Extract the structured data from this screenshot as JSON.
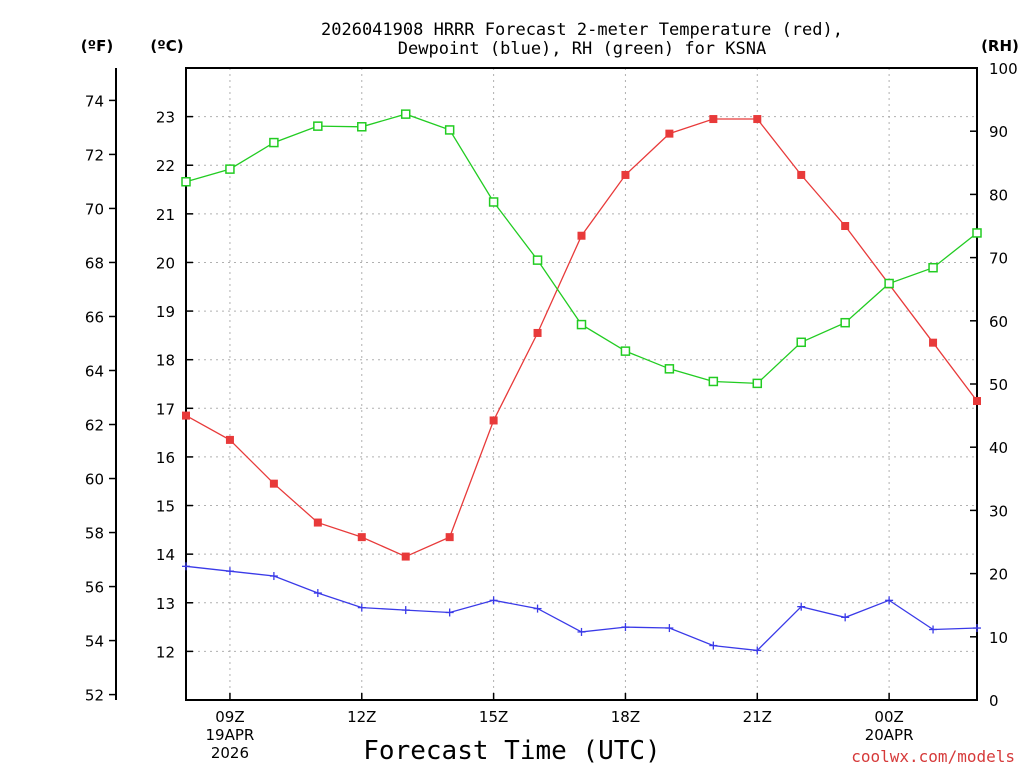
{
  "chart_data": {
    "type": "line",
    "title_line1": "2026041908 HRRR Forecast 2-meter Temperature (red),",
    "title_line2": "Dewpoint (blue), RH (green) for KSNA",
    "xlabel": "Forecast Time (UTC)",
    "credit": "coolwx.com/models",
    "left_outer_unit": "(ºF)",
    "left_inner_unit": "(ºC)",
    "right_unit": "(RH)",
    "x_hours": [
      8,
      9,
      10,
      11,
      12,
      13,
      14,
      15,
      16,
      17,
      18,
      19,
      20,
      21,
      22,
      23,
      24,
      25,
      26
    ],
    "xlim": [
      8,
      26
    ],
    "x_ticks": [
      {
        "hour": 9,
        "label": "09Z",
        "sub1": "19APR",
        "sub2": "2026"
      },
      {
        "hour": 12,
        "label": "12Z",
        "sub1": "",
        "sub2": ""
      },
      {
        "hour": 15,
        "label": "15Z",
        "sub1": "",
        "sub2": ""
      },
      {
        "hour": 18,
        "label": "18Z",
        "sub1": "",
        "sub2": ""
      },
      {
        "hour": 21,
        "label": "21Z",
        "sub1": "",
        "sub2": ""
      },
      {
        "hour": 24,
        "label": "00Z",
        "sub1": "20APR",
        "sub2": ""
      }
    ],
    "celsius_ylim": [
      11.0,
      24.0
    ],
    "celsius_ticks": [
      12,
      13,
      14,
      15,
      16,
      17,
      18,
      19,
      20,
      21,
      22,
      23
    ],
    "fahrenheit_ticks": [
      52,
      54,
      56,
      58,
      60,
      62,
      64,
      66,
      68,
      70,
      72,
      74
    ],
    "rh_ylim": [
      0,
      100
    ],
    "rh_ticks": [
      0,
      10,
      20,
      30,
      40,
      50,
      60,
      70,
      80,
      90,
      100
    ],
    "series": [
      {
        "name": "Temperature",
        "color": "#e83a3a",
        "axis": "celsius",
        "marker": "filled-square",
        "values": [
          16.85,
          16.35,
          15.45,
          14.65,
          14.35,
          13.95,
          14.35,
          16.75,
          18.55,
          20.55,
          21.8,
          22.65,
          22.95,
          22.95,
          21.8,
          20.75,
          19.55,
          18.35,
          17.15
        ]
      },
      {
        "name": "Dewpoint",
        "color": "#3a3ae8",
        "axis": "celsius",
        "marker": "plus",
        "values": [
          13.75,
          13.65,
          13.55,
          13.2,
          12.9,
          12.85,
          12.8,
          13.05,
          12.88,
          12.4,
          12.5,
          12.48,
          12.12,
          12.02,
          12.92,
          12.7,
          13.05,
          12.45,
          12.48
        ]
      },
      {
        "name": "RH",
        "color": "#22cc22",
        "axis": "rh",
        "marker": "open-square",
        "values": [
          82,
          84,
          88.2,
          90.8,
          90.7,
          92.7,
          90.2,
          78.8,
          69.6,
          59.4,
          55.2,
          52.4,
          50.4,
          50.1,
          56.6,
          59.7,
          65.9,
          68.4,
          73.9
        ]
      }
    ]
  }
}
